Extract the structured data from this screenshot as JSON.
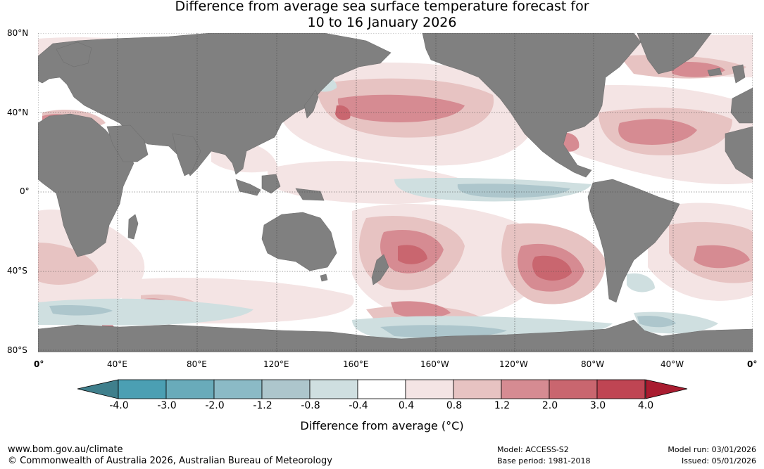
{
  "title_line1": "Difference from average sea surface temperature forecast for",
  "title_line2": "10 to 16 January 2026",
  "lat_labels": [
    "80°N",
    "40°N",
    "0°",
    "40°S",
    "80°S"
  ],
  "lon_labels": [
    "0°",
    "40°E",
    "80°E",
    "120°E",
    "160°E",
    "160°W",
    "120°W",
    "80°W",
    "40°W",
    "0°"
  ],
  "colorbar": {
    "ticks": [
      "-4.0",
      "-3.0",
      "-2.0",
      "-1.2",
      "-0.8",
      "-0.4",
      "0.4",
      "0.8",
      "1.2",
      "2.0",
      "3.0",
      "4.0"
    ],
    "colors": [
      "#3f7f8c",
      "#4b9fb3",
      "#69abba",
      "#8bbac6",
      "#adc6cc",
      "#cfdfe0",
      "#ffffff",
      "#f4e4e4",
      "#e7c3c2",
      "#d68b92",
      "#c9666f",
      "#bf4553",
      "#a91c30"
    ],
    "label": "Difference from average (°C)"
  },
  "footer": {
    "url": "www.bom.gov.au/climate",
    "copyright": "© Commonwealth of Australia 2026, Australian Bureau of Meteorology",
    "model": "Model: ACCESS-S2",
    "base_period": "Base period: 1981-2018",
    "model_run": "Model run: 03/01/2026",
    "issued": "Issued: 05/01/2026"
  },
  "colors": {
    "land": "#808080",
    "grid": "#444444"
  }
}
